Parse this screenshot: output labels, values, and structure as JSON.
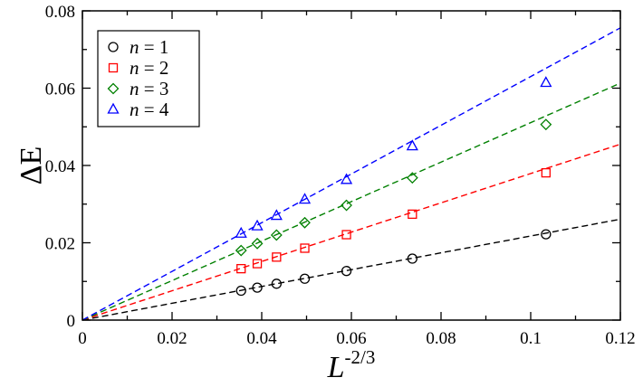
{
  "chart_data": {
    "type": "scatter",
    "xlabel": {
      "base": "L",
      "sup": "-2/3"
    },
    "ylabel": "ΔE",
    "xlim": [
      0,
      0.12
    ],
    "ylim": [
      0,
      0.08
    ],
    "xticks": [
      0,
      0.02,
      0.04,
      0.06,
      0.08,
      0.1,
      0.12
    ],
    "xtick_labels": [
      "0",
      "0.02",
      "0.04",
      "0.06",
      "0.08",
      "0.1",
      "0.12"
    ],
    "yticks": [
      0,
      0.02,
      0.04,
      0.06,
      0.08
    ],
    "ytick_labels": [
      "0",
      "0.02",
      "0.04",
      "0.06",
      "0.08"
    ],
    "grid": false,
    "legend_position": "top-left",
    "series": [
      {
        "name": "n = 1",
        "label_var": "n",
        "label_rest": " = 1",
        "marker": "circle",
        "color": "#000000",
        "x": [
          0.0354,
          0.039,
          0.0433,
          0.0496,
          0.0589,
          0.0736,
          0.1034
        ],
        "y": [
          0.0076,
          0.0084,
          0.0094,
          0.0107,
          0.0127,
          0.0159,
          0.0222
        ],
        "fit": {
          "x": [
            0,
            0.12
          ],
          "y": [
            0,
            0.0261
          ]
        }
      },
      {
        "name": "n = 2",
        "label_var": "n",
        "label_rest": " = 2",
        "marker": "square",
        "color": "#ff0000",
        "x": [
          0.0354,
          0.039,
          0.0433,
          0.0496,
          0.0589,
          0.0736,
          0.1034
        ],
        "y": [
          0.0133,
          0.0146,
          0.0163,
          0.0186,
          0.0221,
          0.0274,
          0.0381
        ],
        "fit": {
          "x": [
            0,
            0.12
          ],
          "y": [
            0,
            0.0455
          ]
        }
      },
      {
        "name": "n = 3",
        "label_var": "n",
        "label_rest": " = 3",
        "marker": "diamond",
        "color": "#008000",
        "x": [
          0.0354,
          0.039,
          0.0433,
          0.0496,
          0.0589,
          0.0736,
          0.1034
        ],
        "y": [
          0.018,
          0.0198,
          0.022,
          0.0252,
          0.0297,
          0.0368,
          0.0506
        ],
        "fit": {
          "x": [
            0,
            0.12
          ],
          "y": [
            0,
            0.0613
          ]
        }
      },
      {
        "name": "n = 4",
        "label_var": "n",
        "label_rest": " = 4",
        "marker": "triangle",
        "color": "#0000ff",
        "x": [
          0.0354,
          0.039,
          0.0433,
          0.0496,
          0.0589,
          0.0736,
          0.1034
        ],
        "y": [
          0.0224,
          0.0243,
          0.027,
          0.0312,
          0.0363,
          0.045,
          0.0614
        ],
        "fit": {
          "x": [
            0,
            0.12
          ],
          "y": [
            0,
            0.0756
          ]
        }
      }
    ]
  }
}
